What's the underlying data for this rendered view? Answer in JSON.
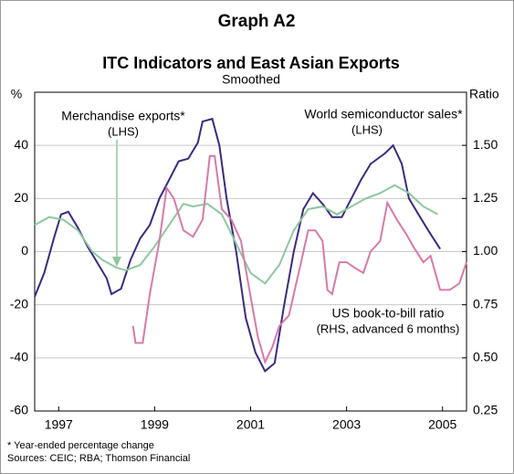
{
  "chart_data": {
    "type": "line",
    "title": "Graph A2",
    "subtitle": "ITC Indicators and East Asian Exports",
    "subtitle2": "Smoothed",
    "ylabel": "%",
    "y2label": "Ratio",
    "xlim": [
      1997,
      2006
    ],
    "xticks": [
      {
        "value": 1997.5,
        "label": "1997"
      },
      {
        "value": 1999.5,
        "label": "1999"
      },
      {
        "value": 2001.5,
        "label": "2001"
      },
      {
        "value": 2003.5,
        "label": "2003"
      },
      {
        "value": 2005.5,
        "label": "2005"
      }
    ],
    "ylim": [
      -60,
      60
    ],
    "yticks": [
      -60,
      -40,
      -20,
      0,
      20,
      40
    ],
    "y2lim": [
      0.25,
      1.75
    ],
    "y2ticks": [
      {
        "value": 0.25,
        "label": "0.25"
      },
      {
        "value": 0.5,
        "label": "0.50"
      },
      {
        "value": 0.75,
        "label": "0.75"
      },
      {
        "value": 1.0,
        "label": "1.00"
      },
      {
        "value": 1.25,
        "label": "1.25"
      },
      {
        "value": 1.5,
        "label": "1.50"
      }
    ],
    "series": [
      {
        "name": "World semiconductor sales*",
        "note": "(LHS)",
        "color": "#3b2a80",
        "axis": "y",
        "x": [
          1997.0,
          1997.2,
          1997.4,
          1997.55,
          1997.7,
          1997.9,
          1998.1,
          1998.3,
          1998.5,
          1998.6,
          1998.8,
          1999.0,
          1999.2,
          1999.4,
          1999.6,
          1999.8,
          2000.0,
          2000.2,
          2000.4,
          2000.5,
          2000.7,
          2000.85,
          2001.0,
          2001.2,
          2001.4,
          2001.6,
          2001.8,
          2002.0,
          2002.2,
          2002.4,
          2002.6,
          2002.8,
          2003.0,
          2003.2,
          2003.4,
          2003.6,
          2003.8,
          2004.0,
          2004.3,
          2004.47,
          2004.65,
          2004.8,
          2005.0,
          2005.2,
          2005.45
        ],
        "values": [
          -17,
          -8,
          5,
          14,
          15,
          9,
          2,
          -4,
          -10,
          -16,
          -14,
          -3,
          5,
          10,
          20,
          27,
          34,
          35,
          41,
          49,
          50,
          40,
          20,
          0,
          -25,
          -38,
          -45,
          -42,
          -20,
          0,
          16,
          22,
          18,
          13,
          13,
          20,
          27,
          33,
          37,
          40,
          33,
          20,
          14,
          8,
          1
        ]
      },
      {
        "name": "Merchandise exports*",
        "note": "(LHS)",
        "color": "#8cc89e",
        "axis": "y",
        "x": [
          1997.0,
          1997.3,
          1997.6,
          1997.9,
          1998.2,
          1998.4,
          1998.7,
          1998.9,
          1999.2,
          1999.5,
          1999.8,
          2000.1,
          2000.3,
          2000.6,
          2000.9,
          2001.2,
          2001.5,
          2001.8,
          2002.1,
          2002.4,
          2002.7,
          2003.0,
          2003.3,
          2003.6,
          2003.9,
          2004.2,
          2004.5,
          2004.8,
          2005.1,
          2005.4
        ],
        "values": [
          10,
          13,
          12,
          8,
          0,
          -3,
          -6,
          -7,
          -5,
          2,
          10,
          18,
          17,
          18,
          14,
          3,
          -8,
          -12,
          -5,
          8,
          16,
          17,
          14,
          17,
          20,
          22,
          25,
          22,
          17,
          14
        ]
      },
      {
        "name": "US book-to-bill ratio",
        "note": "(RHS, advanced 6 months)",
        "color": "#d77aa8",
        "axis": "y2",
        "x": [
          1999.05,
          1999.1,
          1999.25,
          1999.4,
          1999.6,
          1999.75,
          1999.9,
          2000.1,
          2000.3,
          2000.5,
          2000.65,
          2000.75,
          2000.9,
          2001.1,
          2001.3,
          2001.45,
          2001.65,
          2001.8,
          2001.95,
          2002.1,
          2002.3,
          2002.5,
          2002.7,
          2002.85,
          2003.0,
          2003.1,
          2003.2,
          2003.35,
          2003.5,
          2003.7,
          2003.85,
          2004.0,
          2004.2,
          2004.35,
          2004.55,
          2004.75,
          2004.9,
          2005.1,
          2005.25,
          2005.45,
          2005.65,
          2005.85,
          2006.0
        ],
        "values": [
          0.65,
          0.57,
          0.57,
          0.8,
          1.05,
          1.3,
          1.25,
          1.1,
          1.07,
          1.15,
          1.45,
          1.45,
          1.2,
          1.15,
          1.05,
          0.85,
          0.6,
          0.48,
          0.55,
          0.65,
          0.7,
          0.9,
          1.1,
          1.1,
          1.05,
          0.82,
          0.8,
          0.95,
          0.95,
          0.92,
          0.9,
          1.0,
          1.05,
          1.23,
          1.15,
          1.08,
          1.02,
          0.95,
          0.98,
          0.82,
          0.82,
          0.85,
          0.95
        ]
      }
    ],
    "notes": [
      "*  Year-ended percentage change",
      "Sources: CEIC; RBA; Thomson Financial"
    ]
  }
}
